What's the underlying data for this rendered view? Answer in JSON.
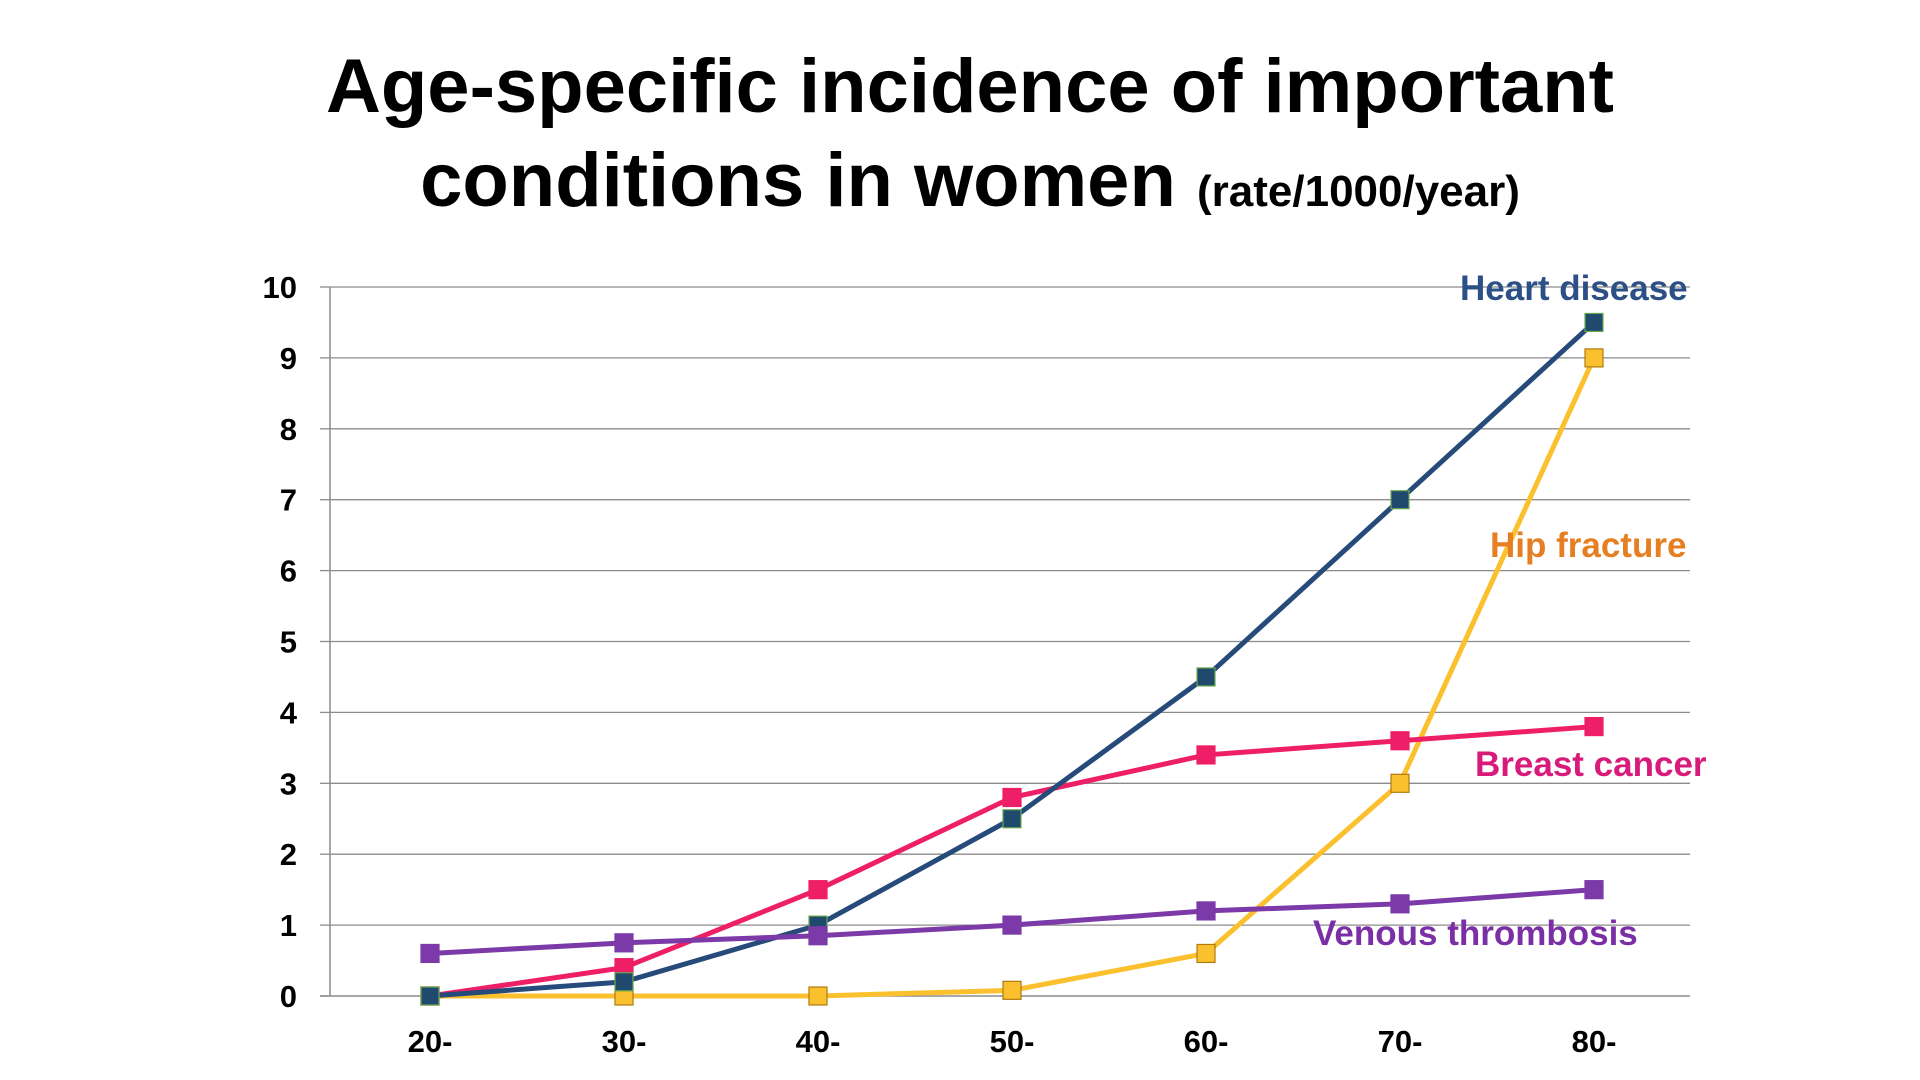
{
  "title": {
    "line1": "Age-specific incidence of important",
    "line2_main": "conditions in women",
    "line2_unit": "(rate/1000/year)"
  },
  "chart_data": {
    "type": "line",
    "title": "Age-specific incidence of important conditions in women (rate/1000/year)",
    "categories": [
      "20-",
      "30-",
      "40-",
      "50-",
      "60-",
      "70-",
      "80-"
    ],
    "ylim": [
      0,
      10
    ],
    "yticks": [
      "0",
      "1",
      "2",
      "3",
      "4",
      "5",
      "6",
      "7",
      "8",
      "9",
      "10"
    ],
    "grid": true,
    "series": [
      {
        "name": "Heart disease",
        "values": [
          0,
          0.2,
          1.0,
          2.5,
          4.5,
          7.0,
          9.5
        ],
        "line_color": "#264B7A",
        "marker_color": "#1F4A6E",
        "label_color": "#2C4F86"
      },
      {
        "name": "Hip fracture",
        "values": [
          0,
          0,
          0,
          0.08,
          0.6,
          3.0,
          9.0
        ],
        "line_color": "#FBC02D",
        "marker_color": "#FBC02D",
        "label_color": "#E67E22"
      },
      {
        "name": "Breast cancer",
        "values": [
          0,
          0.4,
          1.5,
          2.8,
          3.4,
          3.6,
          3.8
        ],
        "line_color": "#EE1F66",
        "marker_color": "#EE1F66",
        "label_color": "#D81B7A"
      },
      {
        "name": "Venous thrombosis",
        "values": [
          0.6,
          0.75,
          0.85,
          1.0,
          1.2,
          1.3,
          1.5
        ],
        "line_color": "#7B3AA8",
        "marker_color": "#7B3AA8",
        "label_color": "#7B2FA6"
      }
    ]
  }
}
